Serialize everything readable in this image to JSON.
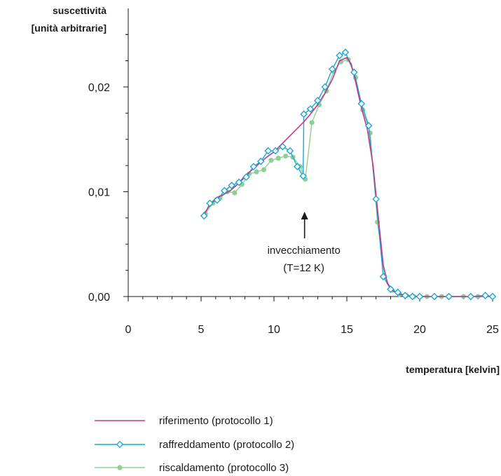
{
  "chart_data": {
    "type": "line",
    "ylabel_line1": "suscettività",
    "ylabel_line2": "[unità arbitrarie]",
    "xlabel": "temperatura [kelvin]",
    "xlim": [
      0,
      25
    ],
    "ylim": [
      0,
      0.02
    ],
    "x_ticks": [
      {
        "value": 0,
        "label": "0"
      },
      {
        "value": 5,
        "label": "5"
      },
      {
        "value": 10,
        "label": "10"
      },
      {
        "value": 15,
        "label": "15"
      },
      {
        "value": 20,
        "label": "20"
      },
      {
        "value": 25,
        "label": "25"
      }
    ],
    "y_ticks": [
      {
        "value": 0,
        "label": "0,00"
      },
      {
        "value": 0.01,
        "label": "0,01"
      },
      {
        "value": 0.02,
        "label": "0,02"
      }
    ],
    "annotation": {
      "line1": "invecchiamento",
      "line2": "(T=12 K)",
      "x": 12.1,
      "y": 0.0075
    },
    "series": [
      {
        "name": "riferimento (protocollo 1)",
        "color": "#c0398f",
        "marker": "none",
        "x": [
          5.2,
          5.6,
          6.0,
          6.5,
          7.0,
          7.5,
          8.0,
          8.5,
          9.0,
          9.5,
          10.0,
          10.5,
          11.0,
          11.5,
          12.0,
          12.5,
          13.0,
          13.5,
          14.0,
          14.5,
          15.0,
          15.3,
          15.6,
          16.0,
          16.4,
          16.8,
          17.2,
          17.5,
          17.8,
          18.2,
          18.6,
          19.0,
          20.0,
          21.0,
          22.0,
          23.0,
          24.0,
          25.0
        ],
        "y": [
          0.0079,
          0.0087,
          0.0094,
          0.0097,
          0.0101,
          0.0107,
          0.0115,
          0.0121,
          0.0127,
          0.0133,
          0.0138,
          0.0145,
          0.0152,
          0.0159,
          0.0166,
          0.0174,
          0.0183,
          0.0194,
          0.0207,
          0.0225,
          0.0228,
          0.0222,
          0.0205,
          0.018,
          0.016,
          0.0125,
          0.007,
          0.003,
          0.0012,
          0.0005,
          0.0002,
          0.0001,
          0.0,
          0.0,
          0.0,
          0.0,
          0.0,
          0.0
        ]
      },
      {
        "name": "raffreddamento (protocollo 2)",
        "color": "#1aa6d6",
        "marker": "diamond",
        "x": [
          5.2,
          5.6,
          6.1,
          6.6,
          7.1,
          7.6,
          8.1,
          8.6,
          9.1,
          9.6,
          10.1,
          10.6,
          11.1,
          11.6,
          12.0,
          12.05,
          12.5,
          13.0,
          13.5,
          14.0,
          14.5,
          14.9,
          15.5,
          16.0,
          16.5,
          17.0,
          17.5,
          18.0,
          18.5,
          19.0,
          19.5,
          20.0,
          21.0,
          22.0,
          23.5,
          24.5,
          25.0
        ],
        "y": [
          0.0077,
          0.0089,
          0.0092,
          0.0101,
          0.0106,
          0.0109,
          0.0114,
          0.0124,
          0.0129,
          0.0139,
          0.0139,
          0.0143,
          0.0139,
          0.0124,
          0.0115,
          0.0174,
          0.0179,
          0.0187,
          0.02,
          0.0217,
          0.023,
          0.0233,
          0.0214,
          0.0184,
          0.0163,
          0.0093,
          0.0019,
          0.0007,
          0.0004,
          0.0001,
          0.0,
          0.0,
          0.0,
          0.0,
          0.0,
          0.0001,
          0.0
        ]
      },
      {
        "name": "riscaldamento (protocollo 3)",
        "color": "#8fcf95",
        "marker": "circle",
        "x": [
          5.3,
          5.8,
          6.3,
          6.8,
          7.3,
          7.8,
          8.3,
          8.8,
          9.3,
          9.8,
          10.3,
          10.8,
          11.3,
          11.8,
          12.15,
          12.6,
          13.1,
          13.6,
          14.1,
          14.6,
          15.1,
          15.6,
          16.1,
          16.6,
          17.1,
          17.6,
          18.1,
          18.6,
          19.1,
          19.6,
          20.5,
          21.5,
          23.0,
          24.0,
          25.0
        ],
        "y": [
          0.0079,
          0.0089,
          0.0094,
          0.01,
          0.0099,
          0.0107,
          0.0117,
          0.0119,
          0.0121,
          0.013,
          0.0132,
          0.0134,
          0.0133,
          0.0124,
          0.0112,
          0.0166,
          0.0183,
          0.0196,
          0.0215,
          0.0224,
          0.0226,
          0.0209,
          0.0178,
          0.0156,
          0.0071,
          0.0019,
          0.0006,
          0.0002,
          0.0001,
          0.0,
          0.0,
          0.0,
          0.0,
          0.0,
          0.0
        ]
      }
    ]
  }
}
